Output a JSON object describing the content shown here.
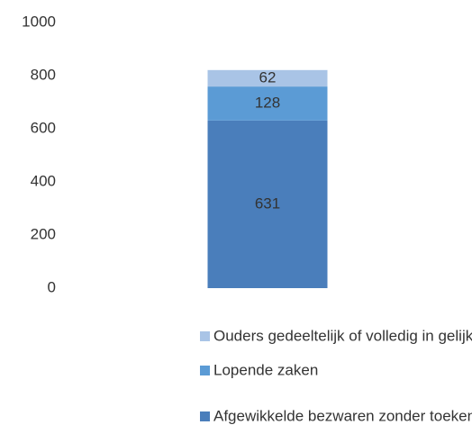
{
  "chart_data": {
    "type": "stacked_bar",
    "categories": [
      null
    ],
    "series": [
      {
        "name": "Afgewikkelde bezwaren zonder toekenning",
        "color": "#4a7ebb",
        "values": [
          631
        ]
      },
      {
        "name": "Lopende zaken",
        "color": "#5b9bd5",
        "values": [
          128
        ]
      },
      {
        "name": "Ouders gedeeltelijk of volledig in gelijk gesteld",
        "color": "#a9c4e6",
        "values": [
          62
        ]
      }
    ],
    "ylim": [
      0,
      1000
    ],
    "yticks": [
      0,
      200,
      400,
      600,
      800,
      1000
    ],
    "grid": false,
    "legend": "bottom"
  }
}
